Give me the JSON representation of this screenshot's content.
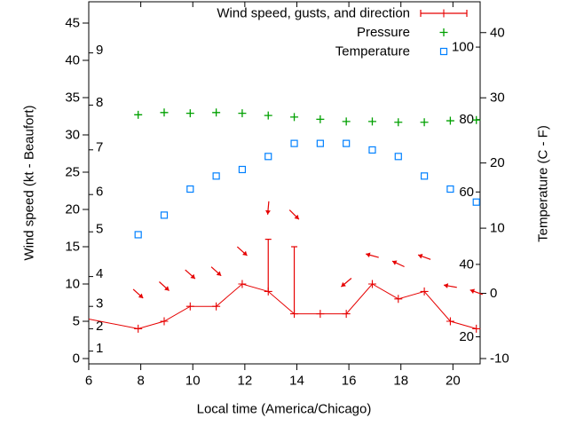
{
  "chart_data": {
    "type": "line",
    "title": "",
    "xlabel": "Local time (America/Chicago)",
    "ylabel": "Wind speed (kt - Beaufort)",
    "y2label": "Temperature (C - F)",
    "legend": {
      "position": "top-right-inside",
      "entries": [
        {
          "label": "Wind speed, gusts, and direction",
          "marker": "errorbar-line",
          "color": "#e60000"
        },
        {
          "label": "Pressure",
          "marker": "plus",
          "color": "#00a000"
        },
        {
          "label": "Temperature",
          "marker": "open-square",
          "color": "#0080ff"
        }
      ]
    },
    "axes": {
      "x": {
        "ticks": [
          6,
          8,
          10,
          12,
          14,
          16,
          18,
          20
        ],
        "range": [
          6,
          21.05
        ],
        "grid": false
      },
      "y_left_kt": {
        "ticks": [
          0,
          5,
          10,
          15,
          20,
          25,
          30,
          35,
          40,
          45
        ],
        "range": [
          -0.7,
          47.9
        ]
      },
      "y_left_beaufort_inner": {
        "labels": [
          1,
          2,
          3,
          4,
          5,
          6,
          7,
          8,
          9
        ],
        "kt_positions": [
          1,
          4,
          7,
          11,
          17,
          22,
          28,
          34,
          41
        ]
      },
      "y_right_c": {
        "ticks": [
          -10,
          0,
          10,
          20,
          30,
          40
        ],
        "range": [
          -10,
          44.8
        ]
      },
      "y_right_f_inner": {
        "labels": [
          20,
          40,
          60,
          80,
          100
        ]
      }
    },
    "x_hours": [
      7.9,
      8.9,
      9.9,
      10.9,
      11.9,
      12.9,
      13.9,
      14.9,
      15.9,
      16.9,
      17.9,
      18.9,
      19.9,
      20.9
    ],
    "series": [
      {
        "name": "Wind speed, gusts, and direction",
        "color": "#e60000",
        "style": "line-with-plus-markers, gust errorbars, direction arrows",
        "wind_kt": [
          4,
          5,
          7,
          7,
          10,
          9,
          6,
          6,
          6,
          10,
          8,
          9,
          5,
          4
        ],
        "gust_kt": [
          null,
          null,
          null,
          null,
          null,
          16,
          15,
          null,
          null,
          null,
          null,
          null,
          null,
          null
        ],
        "leadin_edge_point": {
          "t": 6.0,
          "kt": 5.3
        },
        "arrows": {
          "note": "wind direction arrows drawn above the wind line; angle in screen degrees, 0=east, clockwise",
          "kt_position": [
            8.7,
            9.7,
            11.3,
            11.7,
            14.4,
            20.2,
            19.3,
            null,
            10.2,
            13.8,
            12.7,
            13.6,
            9.7,
            8.9
          ],
          "angle_deg": [
            42,
            42,
            42,
            42,
            42,
            95,
            45,
            null,
            140,
            195,
            205,
            200,
            190,
            200
          ]
        }
      },
      {
        "name": "Pressure",
        "color": "#00a000",
        "style": "points-plus",
        "note": "no pressure axis shown in image; values are plotted heights in left-axis (kt) units",
        "level_left_axis_units": [
          32.7,
          33.0,
          32.9,
          33.0,
          32.9,
          32.6,
          32.4,
          32.1,
          31.8,
          31.8,
          31.7,
          31.7,
          31.9,
          32.0
        ]
      },
      {
        "name": "Temperature",
        "color": "#0080ff",
        "style": "points-open-square",
        "temp_c": [
          9,
          12,
          16,
          18,
          19,
          21,
          23,
          23,
          23,
          22,
          21,
          18,
          16,
          14
        ]
      }
    ],
    "colors": {
      "background": "#ffffff",
      "axis": "#000000",
      "wind": "#e60000",
      "pressure": "#00a000",
      "temperature": "#0080ff"
    }
  }
}
